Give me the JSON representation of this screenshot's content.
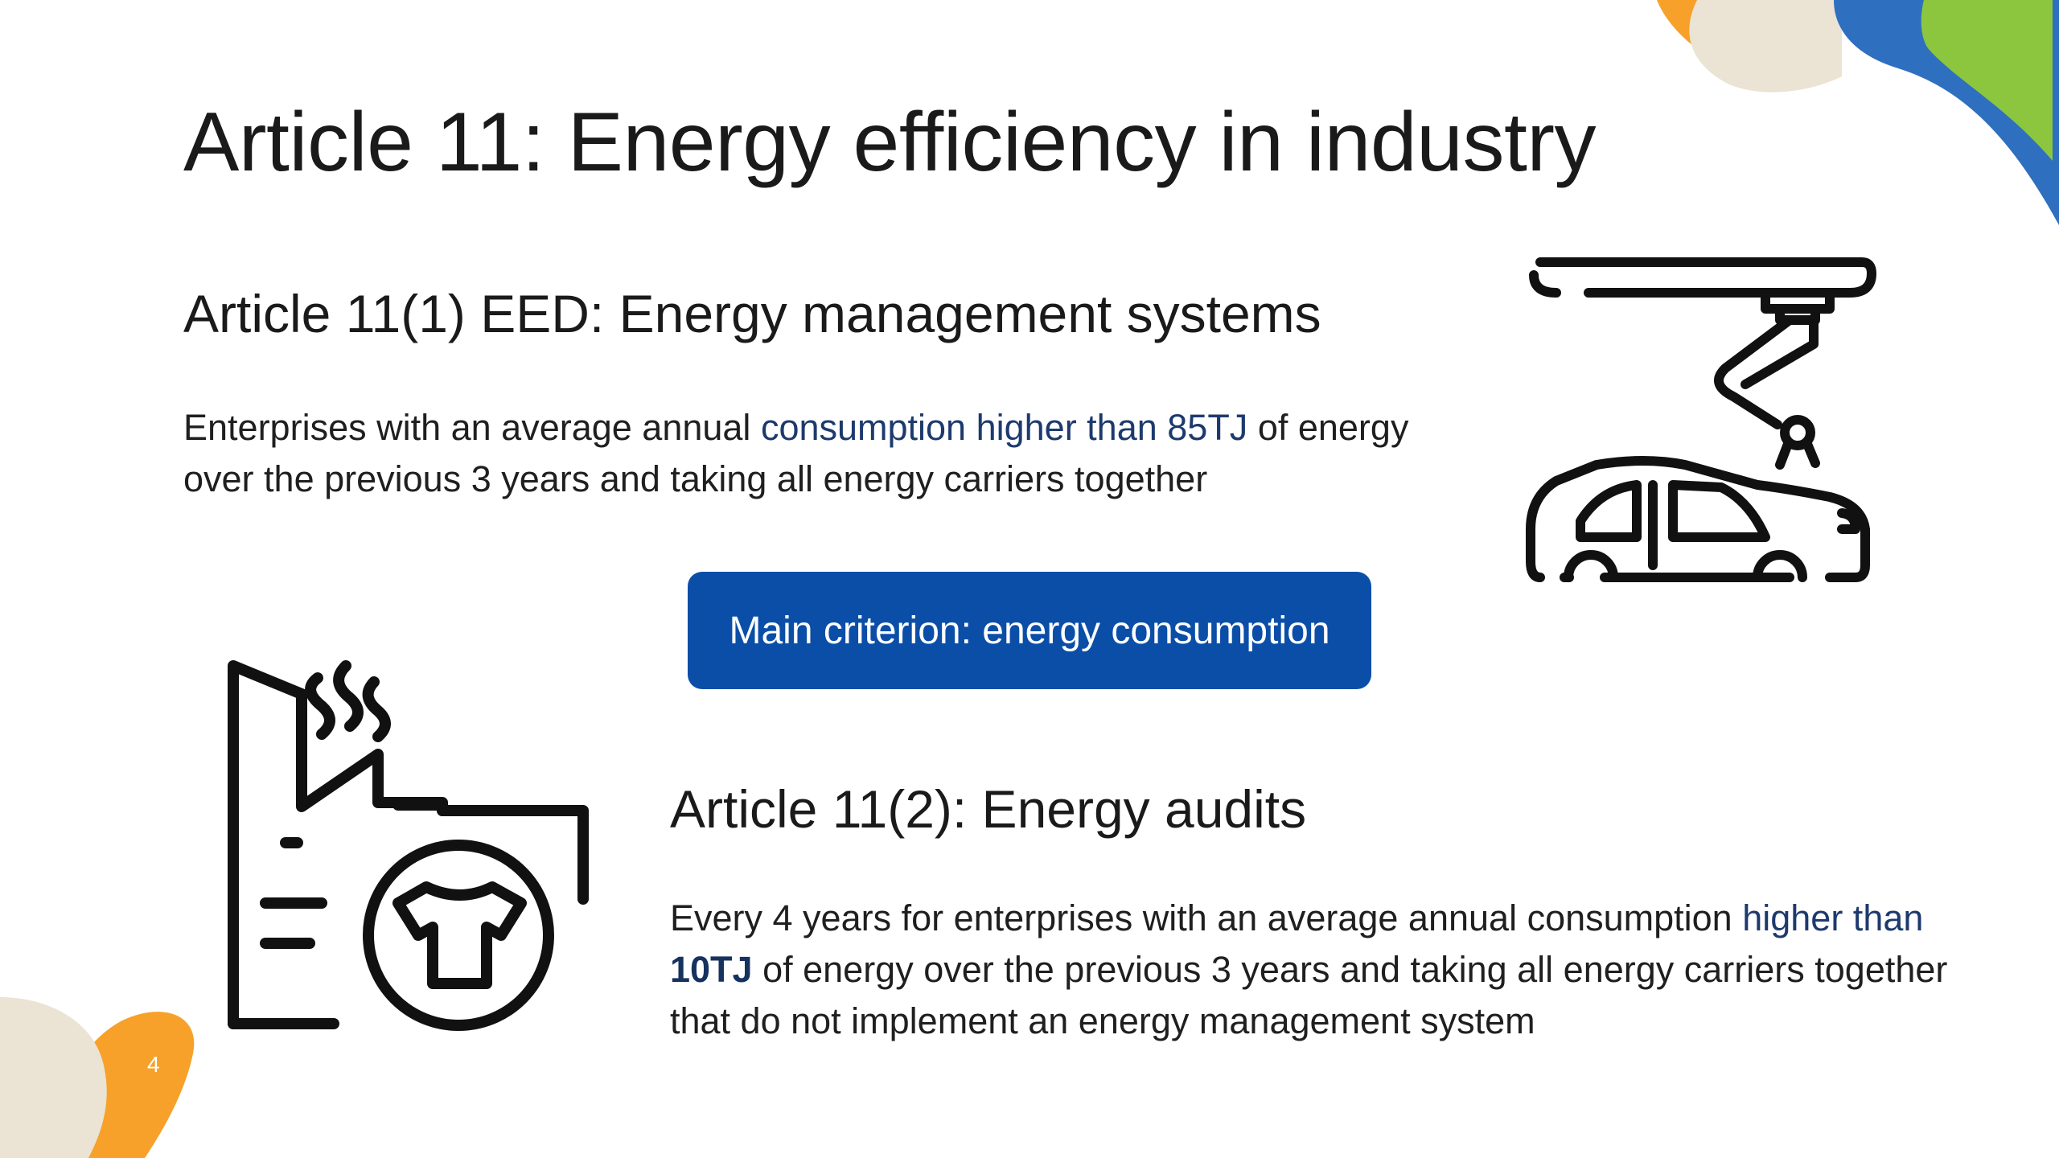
{
  "slide": {
    "title": "Article 11: Energy efficiency in industry",
    "page_number": "4"
  },
  "section1": {
    "heading": "Article 11(1) EED: Energy management systems",
    "text_pre": "Enterprises with an average annual ",
    "text_highlight": "consumption higher than 85TJ",
    "text_post": " of energy over the previous 3 years and taking all energy carriers together"
  },
  "criterion_button": {
    "label": "Main criterion: energy consumption"
  },
  "section2": {
    "heading": "Article 11(2): Energy audits",
    "text_pre": "Every 4 years for enterprises with an average annual consumption ",
    "text_highlight": "higher than ",
    "text_bold": "10TJ",
    "text_post": " of energy over the previous 3 years and taking all energy carriers together that do not implement an energy management system"
  },
  "icons": {
    "robot": "robotic-arm-car-assembly-icon",
    "factory": "textile-factory-icon"
  },
  "colors": {
    "accent_blue": "#0b4ea8",
    "highlight_text": "#1d3a6e",
    "deco_orange": "#f7a12a",
    "deco_beige": "#ebe3d3",
    "deco_blue": "#2f6fc0",
    "deco_green": "#8cc63e"
  }
}
